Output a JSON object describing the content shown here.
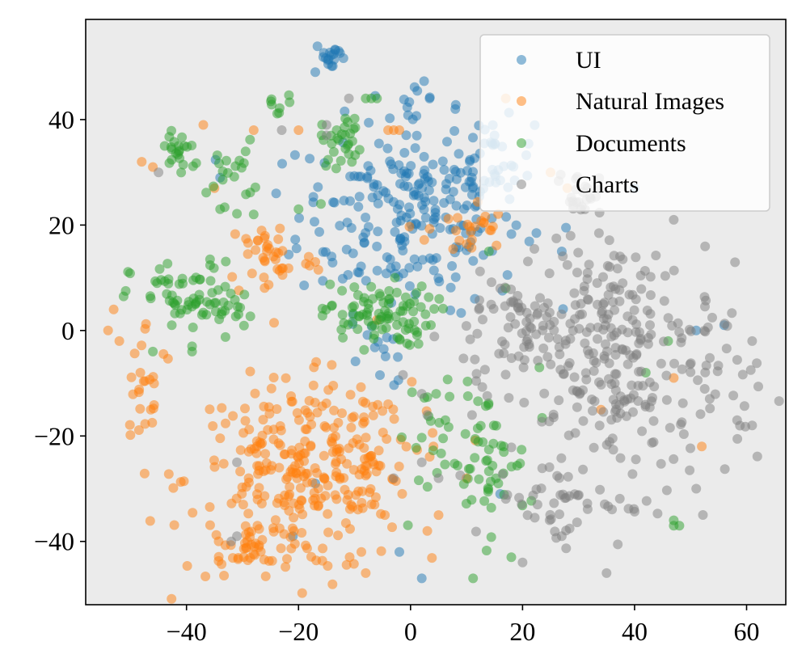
{
  "chart_data": {
    "type": "scatter",
    "title": "",
    "xlabel": "",
    "ylabel": "",
    "xlim": [
      -58,
      67
    ],
    "ylim": [
      -52,
      59
    ],
    "xticks": [
      -40,
      -20,
      0,
      20,
      40,
      60
    ],
    "yticks": [
      -40,
      -20,
      0,
      20,
      40
    ],
    "xtick_labels": [
      "−40",
      "−20",
      "0",
      "20",
      "40",
      "60"
    ],
    "ytick_labels": [
      "−40",
      "−20",
      "0",
      "20",
      "40"
    ],
    "grid": false,
    "legend_position": "top-right",
    "background_color": "#ebebeb",
    "series": [
      {
        "name": "UI",
        "color": "#1f77b4",
        "clusters": [
          {
            "cx": 0,
            "cy": 22,
            "sx": 10,
            "sy": 9,
            "n": 230
          },
          {
            "cx": 14,
            "cy": 32,
            "sx": 4,
            "sy": 4,
            "n": 35
          },
          {
            "cx": -14,
            "cy": 52,
            "sx": 1.5,
            "sy": 1.5,
            "n": 18
          },
          {
            "cx": 1,
            "cy": 44,
            "sx": 1.5,
            "sy": 1.5,
            "n": 10
          },
          {
            "cx": -5,
            "cy": -5,
            "sx": 3,
            "sy": 3,
            "n": 12
          }
        ],
        "points": [
          [
            -24,
            26
          ],
          [
            -17,
            49
          ],
          [
            2,
            -47
          ],
          [
            -2,
            -42
          ],
          [
            56,
            1
          ],
          [
            51,
            0
          ],
          [
            40,
            27
          ],
          [
            27,
            15
          ],
          [
            16,
            -31
          ],
          [
            -21,
            -39
          ],
          [
            -17,
            -29
          ],
          [
            -34,
            29
          ],
          [
            15,
            37
          ],
          [
            8,
            42
          ]
        ]
      },
      {
        "name": "Natural Images",
        "color": "#ff7f0e",
        "clusters": [
          {
            "cx": -20,
            "cy": -28,
            "sx": 10,
            "sy": 9,
            "n": 280
          },
          {
            "cx": -28,
            "cy": -43,
            "sx": 3,
            "sy": 2,
            "n": 25
          },
          {
            "cx": -25,
            "cy": 14,
            "sx": 4,
            "sy": 4,
            "n": 40
          },
          {
            "cx": -47,
            "cy": -10,
            "sx": 2.5,
            "sy": 6,
            "n": 25
          },
          {
            "cx": 10,
            "cy": 19,
            "sx": 3.5,
            "sy": 3,
            "n": 25
          },
          {
            "cx": -8,
            "cy": -20,
            "sx": 5,
            "sy": 6,
            "n": 40
          }
        ],
        "points": [
          [
            -53,
            4
          ],
          [
            -54,
            0
          ],
          [
            -52,
            -2
          ],
          [
            -48,
            32
          ],
          [
            -46,
            31
          ],
          [
            -37,
            39
          ],
          [
            -35,
            27
          ],
          [
            -28,
            38
          ],
          [
            -20,
            38
          ],
          [
            -4,
            38
          ],
          [
            -3,
            38
          ],
          [
            -2,
            38
          ],
          [
            -8,
            -46
          ],
          [
            3,
            -38
          ],
          [
            5,
            -35
          ],
          [
            10,
            -28
          ],
          [
            17,
            44
          ],
          [
            25,
            30
          ],
          [
            28,
            27
          ],
          [
            34,
            -15
          ],
          [
            47,
            -9
          ],
          [
            52,
            -22
          ],
          [
            -17,
            13
          ],
          [
            -6,
            2
          ]
        ]
      },
      {
        "name": "Documents",
        "color": "#2ca02c",
        "clusters": [
          {
            "cx": -6,
            "cy": 3,
            "sx": 5,
            "sy": 3,
            "n": 90
          },
          {
            "cx": -40,
            "cy": 6,
            "sx": 5,
            "sy": 3.5,
            "n": 60
          },
          {
            "cx": -41,
            "cy": 34,
            "sx": 2,
            "sy": 2.5,
            "n": 22
          },
          {
            "cx": -32,
            "cy": 30,
            "sx": 2,
            "sy": 3,
            "n": 20
          },
          {
            "cx": -12,
            "cy": 36,
            "sx": 2,
            "sy": 2.5,
            "n": 30
          },
          {
            "cx": -24,
            "cy": 43,
            "sx": 1.5,
            "sy": 1,
            "n": 8
          },
          {
            "cx": 13,
            "cy": -25,
            "sx": 4,
            "sy": 7,
            "n": 55
          },
          {
            "cx": -32,
            "cy": 4,
            "sx": 2,
            "sy": 2,
            "n": 15
          },
          {
            "cx": 5,
            "cy": -20,
            "sx": 4,
            "sy": 6,
            "n": 20
          }
        ],
        "points": [
          [
            -7,
            44
          ],
          [
            -8,
            44
          ],
          [
            -6,
            44
          ],
          [
            -46,
            -4
          ],
          [
            -39,
            -3
          ],
          [
            -39,
            -4
          ],
          [
            47,
            -36
          ],
          [
            47,
            -37
          ],
          [
            48,
            -37
          ],
          [
            42,
            -8
          ],
          [
            23,
            -7
          ],
          [
            17,
            8
          ],
          [
            18,
            -43
          ],
          [
            14,
            15
          ],
          [
            -34,
            23
          ],
          [
            -20,
            23
          ],
          [
            -16,
            24
          ],
          [
            -28,
            22
          ],
          [
            46,
            -2
          ]
        ]
      },
      {
        "name": "Charts",
        "color": "#7f7f7f",
        "clusters": [
          {
            "cx": 40,
            "cy": -10,
            "sx": 11,
            "sy": 10,
            "n": 230
          },
          {
            "cx": 20,
            "cy": 0,
            "sx": 7,
            "sy": 6,
            "n": 80
          },
          {
            "cx": 36,
            "cy": 8,
            "sx": 5,
            "sy": 4,
            "n": 50
          },
          {
            "cx": 30,
            "cy": 26,
            "sx": 2,
            "sy": 2,
            "n": 25
          },
          {
            "cx": 27,
            "cy": -32,
            "sx": 6,
            "sy": 4,
            "n": 40
          }
        ],
        "points": [
          [
            -45,
            30
          ],
          [
            -32,
            -40
          ],
          [
            -31,
            -39
          ],
          [
            -11,
            44
          ],
          [
            -15,
            37
          ],
          [
            -23,
            38
          ],
          [
            -15,
            39
          ],
          [
            2,
            -12
          ],
          [
            3,
            -16
          ],
          [
            2,
            -25
          ],
          [
            -3,
            -28
          ],
          [
            5,
            -28
          ],
          [
            35,
            -46
          ],
          [
            47,
            21
          ],
          [
            61,
            -2
          ],
          [
            61,
            -18
          ],
          [
            51,
            -30
          ],
          [
            20,
            -44
          ],
          [
            27,
            -39
          ],
          [
            -31,
            -25
          ]
        ]
      }
    ]
  }
}
